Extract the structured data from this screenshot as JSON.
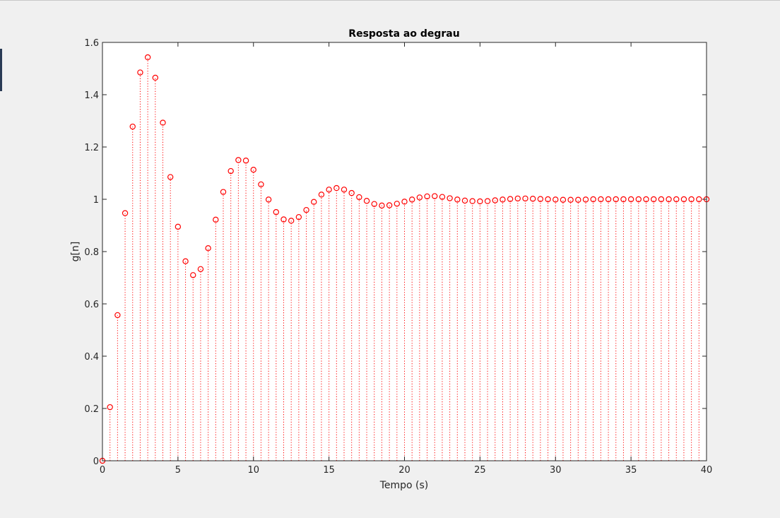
{
  "chart_data": {
    "type": "stem",
    "title": "Resposta ao degrau",
    "xlabel": "Tempo (s)",
    "ylabel": "g[n]",
    "xlim": [
      0,
      40
    ],
    "ylim": [
      0,
      1.6
    ],
    "xticks": [
      0,
      5,
      10,
      15,
      20,
      25,
      30,
      35,
      40
    ],
    "yticks": [
      0,
      0.2,
      0.4,
      0.6,
      0.8,
      1,
      1.2,
      1.4,
      1.6
    ],
    "xtick_labels": [
      "0",
      "5",
      "10",
      "15",
      "20",
      "25",
      "30",
      "35",
      "40"
    ],
    "ytick_labels": [
      "0",
      "0.2",
      "0.4",
      "0.6",
      "0.8",
      "1",
      "1.2",
      "1.4",
      "1.6"
    ],
    "grid": false,
    "marker": "circle",
    "line_style": "dotted",
    "color": "#ff0000",
    "series": [
      {
        "name": "g[n]",
        "x": [
          0,
          0.5,
          1,
          1.5,
          2,
          2.5,
          3,
          3.5,
          4,
          4.5,
          5,
          5.5,
          6,
          6.5,
          7,
          7.5,
          8,
          8.5,
          9,
          9.5,
          10,
          10.5,
          11,
          11.5,
          12,
          12.5,
          13,
          13.5,
          14,
          14.5,
          15,
          15.5,
          16,
          16.5,
          17,
          17.5,
          18,
          18.5,
          19,
          19.5,
          20,
          20.5,
          21,
          21.5,
          22,
          22.5,
          23,
          23.5,
          24,
          24.5,
          25,
          25.5,
          26,
          26.5,
          27,
          27.5,
          28,
          28.5,
          29,
          29.5,
          30,
          30.5,
          31,
          31.5,
          32,
          32.5,
          33,
          33.5,
          34,
          34.5,
          35,
          35.5,
          36,
          36.5,
          37,
          37.5,
          38,
          38.5,
          39,
          39.5,
          40
        ],
        "values": [
          0,
          0.205,
          0.557,
          0.947,
          1.278,
          1.485,
          1.543,
          1.465,
          1.293,
          1.085,
          0.895,
          0.763,
          0.71,
          0.733,
          0.813,
          0.922,
          1.028,
          1.108,
          1.15,
          1.148,
          1.113,
          1.057,
          0.999,
          0.951,
          0.923,
          0.918,
          0.932,
          0.959,
          0.99,
          1.018,
          1.037,
          1.043,
          1.037,
          1.024,
          1.008,
          0.994,
          0.982,
          0.976,
          0.977,
          0.983,
          0.991,
          0.999,
          1.007,
          1.011,
          1.012,
          1.009,
          1.004,
          0.999,
          0.995,
          0.993,
          0.992,
          0.993,
          0.996,
          0.999,
          1.001,
          1.003,
          1.003,
          1.002,
          1.001,
          1.0,
          0.999,
          0.998,
          0.998,
          0.998,
          0.999,
          1.0,
          1.0,
          1.0,
          1.0,
          1.0,
          1.0,
          1.0,
          1.0,
          1.0,
          1.0,
          1.0,
          1.0,
          1.0,
          1.0,
          1.0,
          1.0
        ]
      }
    ]
  }
}
